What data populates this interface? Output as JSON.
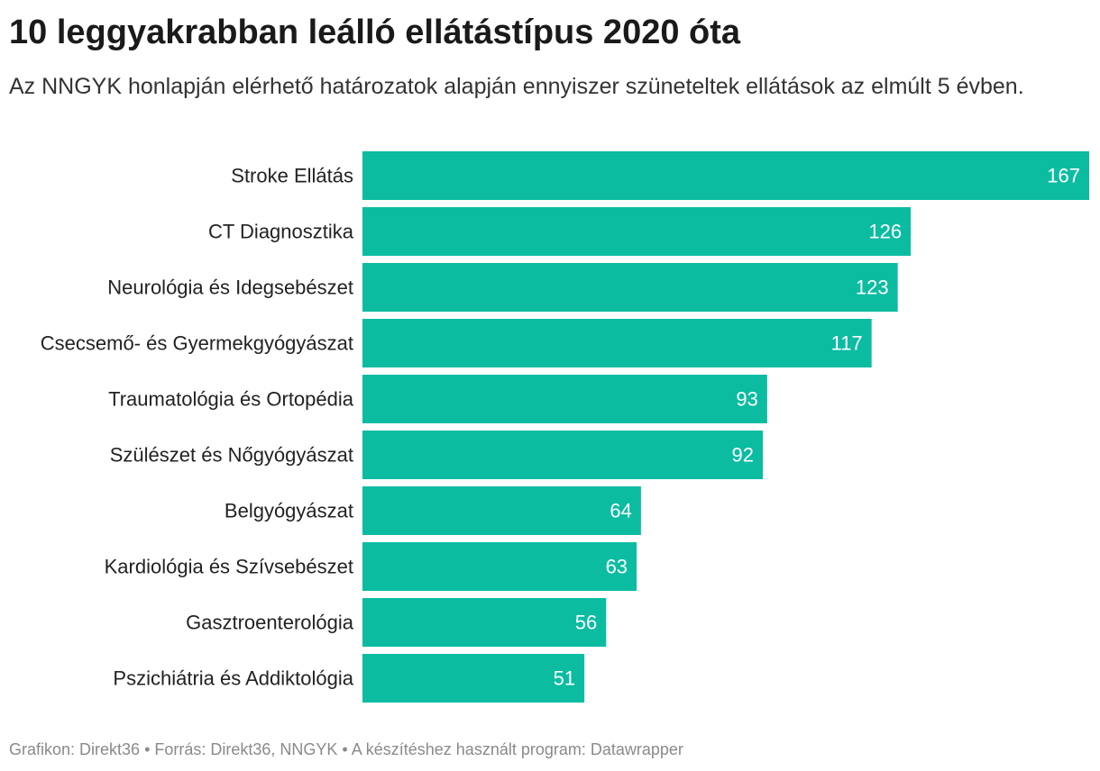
{
  "title": "10 leggyakrabban leálló ellátástípus 2020 óta",
  "subtitle": "Az NNGYK honlapján elérhető határozatok alapján ennyiszer szüneteltek ellátások az elmúlt 5 évben.",
  "footer": {
    "credit": "Grafikon: Direkt36",
    "source": "Forrás: Direkt36, NNGYK",
    "tool": "A készítéshez használt program: Datawrapper",
    "separator": " • "
  },
  "colors": {
    "bar": "#0bbca1",
    "value_label": "#ffffff"
  },
  "chart_data": {
    "type": "bar",
    "orientation": "horizontal",
    "title": "10 leggyakrabban leálló ellátástípus 2020 óta",
    "categories": [
      "Stroke Ellátás",
      "CT Diagnosztika",
      "Neurológia és Idegsebészet",
      "Csecsemő- és Gyermekgyógyászat",
      "Traumatológia és Ortopédia",
      "Szülészet és Nőgyógyászat",
      "Belgyógyászat",
      "Kardiológia és Szívsebészet",
      "Gasztroenterológia",
      "Pszichiátria és Addiktológia"
    ],
    "values": [
      167,
      126,
      123,
      117,
      93,
      92,
      64,
      63,
      56,
      51
    ],
    "xlim": [
      0,
      167
    ],
    "xlabel": "",
    "ylabel": "",
    "grid": false,
    "legend": "none"
  }
}
